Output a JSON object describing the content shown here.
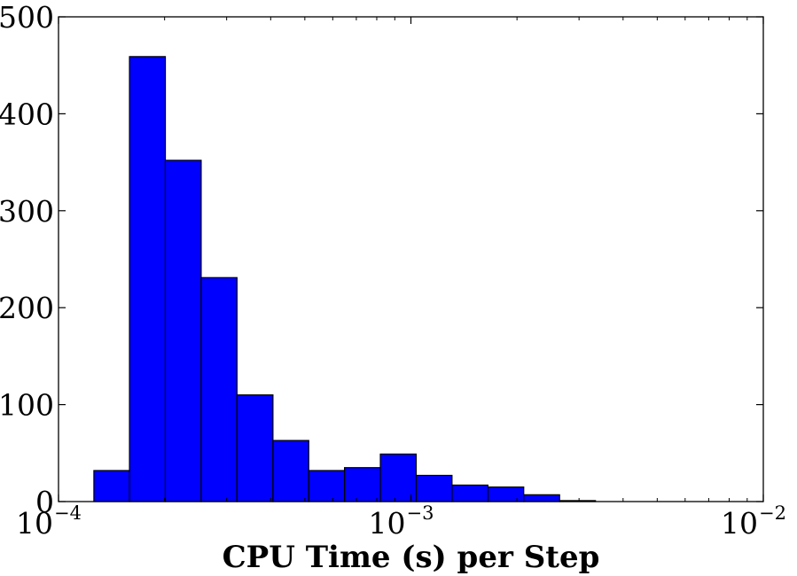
{
  "chart_data": {
    "type": "bar",
    "title": "",
    "xlabel": "CPU Time (s) per Step",
    "ylabel": "",
    "x_scale": "log",
    "xlim": [
      0.0001,
      0.01
    ],
    "ylim": [
      0,
      500
    ],
    "grid": false,
    "legend": "none",
    "bar_color": "#0000ff",
    "edge_color": "#000000",
    "y_ticks": [
      "0",
      "100",
      "200",
      "300",
      "400",
      "500"
    ],
    "x_ticks": [
      {
        "base": "10",
        "exp": "−4"
      },
      {
        "base": "10",
        "exp": "−3"
      },
      {
        "base": "10",
        "exp": "−2"
      }
    ],
    "bins": [
      {
        "x0": 0.000126,
        "x1": 0.000159,
        "count": 32
      },
      {
        "x0": 0.000159,
        "x1": 0.000201,
        "count": 459
      },
      {
        "x0": 0.000201,
        "x1": 0.000254,
        "count": 352
      },
      {
        "x0": 0.000254,
        "x1": 0.000321,
        "count": 231
      },
      {
        "x0": 0.000321,
        "x1": 0.000406,
        "count": 110
      },
      {
        "x0": 0.000406,
        "x1": 0.000513,
        "count": 63
      },
      {
        "x0": 0.000513,
        "x1": 0.000648,
        "count": 32
      },
      {
        "x0": 0.000648,
        "x1": 0.000819,
        "count": 35
      },
      {
        "x0": 0.000819,
        "x1": 0.001035,
        "count": 49
      },
      {
        "x0": 0.001035,
        "x1": 0.001308,
        "count": 27
      },
      {
        "x0": 0.001308,
        "x1": 0.001654,
        "count": 17
      },
      {
        "x0": 0.001654,
        "x1": 0.00209,
        "count": 15
      },
      {
        "x0": 0.00209,
        "x1": 0.002642,
        "count": 7
      },
      {
        "x0": 0.002642,
        "x1": 0.00334,
        "count": 1
      }
    ]
  }
}
